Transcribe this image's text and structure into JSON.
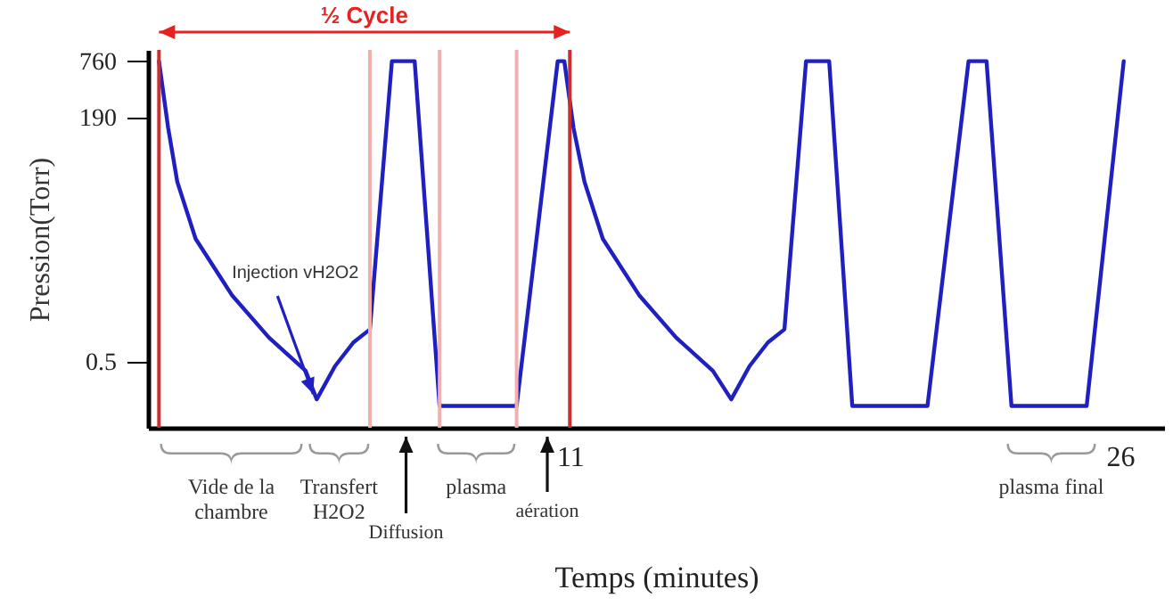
{
  "chart_data": {
    "type": "line",
    "xlabel": "Temps (minutes)",
    "ylabel": "Pression(Torr)",
    "x": [
      -0.2,
      0.05,
      0.3,
      0.8,
      1.8,
      2.8,
      3.8,
      4.1,
      4.6,
      5.1,
      5.55,
      6.15,
      6.77,
      7.45,
      9.55,
      10.67,
      10.85,
      11.1,
      11.4,
      11.9,
      12.9,
      13.9,
      14.9,
      15.4,
      15.9,
      16.4,
      16.85,
      17.44,
      18.07,
      18.7,
      20.75,
      21.87,
      22.36,
      23.04,
      25.09,
      26.1
    ],
    "series": [
      {
        "color": "#2020c0",
        "values": [
          760,
          150,
          40,
          10,
          2.5,
          0.9,
          0.4,
          0.2,
          0.45,
          0.8,
          1.1,
          760,
          760,
          0.17,
          0.17,
          760,
          760,
          150,
          40,
          10,
          2.5,
          0.9,
          0.4,
          0.2,
          0.45,
          0.8,
          1.1,
          760,
          760,
          0.17,
          0.17,
          760,
          760,
          0.17,
          0.17,
          760
        ]
      }
    ],
    "xlim": [
      -0.5,
      27.2
    ],
    "ylim": [
      0.1,
      1000
    ],
    "xticks": [
      11,
      26
    ],
    "yticks": [
      0.5,
      190,
      760
    ],
    "log": "y",
    "ref_lines": [
      {
        "axis": "x",
        "value": -0.2,
        "color": "#c83030"
      },
      {
        "axis": "x",
        "value": 11,
        "color": "#c83030"
      },
      {
        "axis": "x",
        "value": 5.55,
        "color": "#f0b0b0"
      },
      {
        "axis": "x",
        "value": 7.45,
        "color": "#f0b0b0"
      },
      {
        "axis": "x",
        "value": 9.55,
        "color": "#f0b0b0"
      }
    ],
    "annotations": [
      {
        "text": "Injection vH2O2",
        "x": 4.1,
        "y": 0.2
      },
      "½ Cycle",
      "Vide de la\nchambre",
      "Transfert\nH2O2",
      "plasma",
      "plasma final",
      "Diffusion",
      "aération"
    ]
  }
}
